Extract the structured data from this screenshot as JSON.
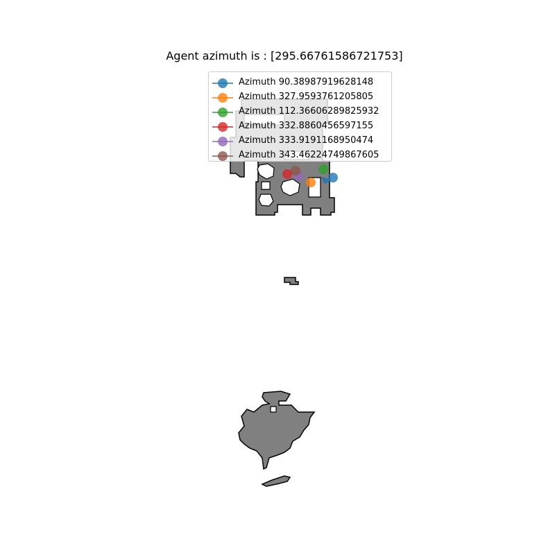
{
  "title": "Agent azimuth is : [295.66761586721753]",
  "agent": {
    "azimuth": 295.66761586721753,
    "color": "#1f77b4"
  },
  "colors": {
    "free_space": "#808080",
    "outline": "#000000",
    "obstacle": "#ffffff"
  },
  "legend": {
    "placement": "upper center",
    "items": [
      {
        "label": "Azimuth 90.38987919628148",
        "color": "#1f77b4"
      },
      {
        "label": "Azimuth 327.9593761205805",
        "color": "#ff7f0e"
      },
      {
        "label": "Azimuth 112.36606289825932",
        "color": "#2ca02c"
      },
      {
        "label": "Azimuth 332.8860456597155",
        "color": "#d62728"
      },
      {
        "label": "Azimuth 333.9191168950474",
        "color": "#9467bd"
      },
      {
        "label": "Azimuth 343.46224749867605",
        "color": "#8c564b"
      }
    ]
  }
}
